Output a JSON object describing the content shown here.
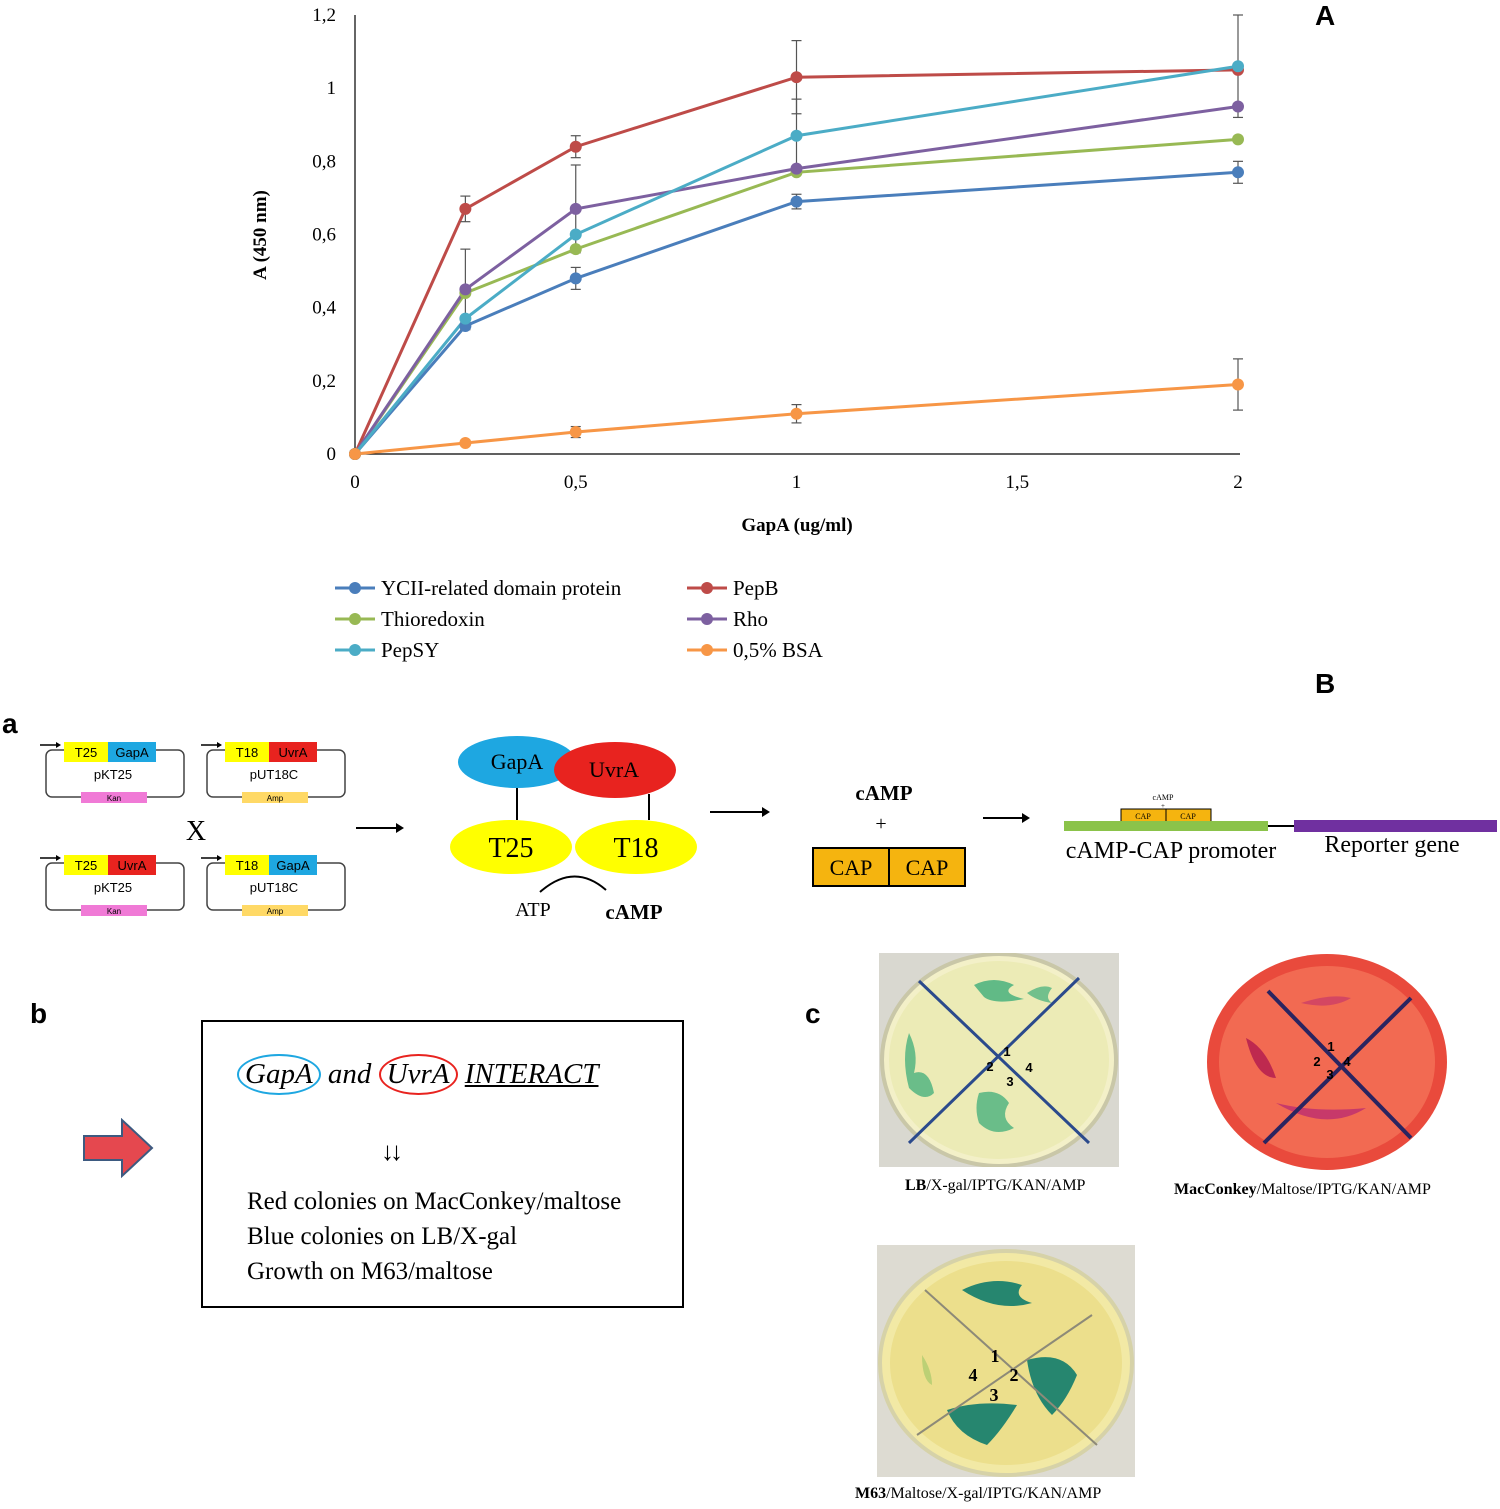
{
  "panel_labels": {
    "A": "A",
    "B": "B",
    "a": "a",
    "b": "b",
    "c": "c"
  },
  "chart_data": {
    "type": "line",
    "xlabel": "GapA (ug/ml)",
    "ylabel": "A (450 nm)",
    "x": [
      0,
      0.25,
      0.5,
      1,
      2
    ],
    "x_ticks": [
      0,
      0.5,
      1,
      1.5,
      2
    ],
    "x_tick_labels": [
      "0",
      "0,5",
      "1",
      "1,5",
      "2"
    ],
    "y_ticks": [
      0,
      0.2,
      0.4,
      0.6,
      0.8,
      1.0,
      1.2
    ],
    "y_tick_labels": [
      "0",
      "0,2",
      "0,4",
      "0,6",
      "0,8",
      "1",
      "1,2"
    ],
    "xlim": [
      0,
      2
    ],
    "ylim": [
      0,
      1.2
    ],
    "legend_position": "bottom",
    "series": [
      {
        "name": "YCII-related domain protein",
        "color": "#4a7ebb",
        "values": [
          0,
          0.35,
          0.48,
          0.69,
          0.77
        ],
        "errors": [
          0,
          0.01,
          0.03,
          0.02,
          0.03
        ]
      },
      {
        "name": "PepB",
        "color": "#be4b48",
        "values": [
          0,
          0.67,
          0.84,
          1.03,
          1.05
        ],
        "errors": [
          0,
          0.035,
          0.03,
          0.1,
          0.0
        ]
      },
      {
        "name": "Thioredoxin",
        "color": "#98b954",
        "values": [
          0,
          0.44,
          0.56,
          0.77,
          0.86
        ],
        "errors": [
          0,
          0.0,
          0.0,
          0.0,
          0.0
        ]
      },
      {
        "name": "Rho",
        "color": "#7d60a0",
        "values": [
          0,
          0.45,
          0.67,
          0.78,
          0.95
        ],
        "errors": [
          0,
          0.11,
          0.12,
          0.0,
          0.0
        ]
      },
      {
        "name": "PepSY",
        "color": "#4bacc6",
        "values": [
          0,
          0.37,
          0.6,
          0.87,
          1.06
        ],
        "errors": [
          0,
          0.0,
          0.0,
          0.1,
          0.14
        ]
      },
      {
        "name": "0,5% BSA",
        "color": "#f79646",
        "values": [
          0,
          0.03,
          0.06,
          0.11,
          0.19
        ],
        "errors": [
          0,
          0.0,
          0.015,
          0.025,
          0.07
        ]
      }
    ]
  },
  "diagram": {
    "plasmids": [
      {
        "tag": "T25",
        "gene": "GapA",
        "gene_color": "#1ea7e1",
        "name": "pKT25",
        "marker": "Kan",
        "marker_color": "#f07ad6"
      },
      {
        "tag": "T18",
        "gene": "UvrA",
        "gene_color": "#e8231f",
        "name": "pUT18C",
        "marker": "Amp",
        "marker_color": "#ffd966"
      },
      {
        "tag": "T25",
        "gene": "UvrA",
        "gene_color": "#e8231f",
        "name": "pKT25",
        "marker": "Kan",
        "marker_color": "#f07ad6"
      },
      {
        "tag": "T18",
        "gene": "GapA",
        "gene_color": "#1ea7e1",
        "name": "pUT18C",
        "marker": "Amp",
        "marker_color": "#ffd966"
      }
    ],
    "cross_symbol": "X",
    "complex": {
      "gapa": "GapA",
      "uvra": "UvrA",
      "t25": "T25",
      "t18": "T18",
      "atp": "ATP",
      "camp": "cAMP"
    },
    "camp_label": "cAMP",
    "plus": "+",
    "cap_box": [
      "CAP",
      "CAP"
    ],
    "promoter": {
      "small_camp": "cAMP",
      "small_plus": "+",
      "small_cap": [
        "CAP",
        "CAP"
      ],
      "label": "cAMP-CAP promoter",
      "reporter": "Reporter gene"
    }
  },
  "box": {
    "word1": "GapA",
    "and": "and",
    "word2": "UvrA",
    "interact": "INTERACT",
    "arrows": "↓↓",
    "lines": [
      "Red colonies on MacConkey/maltose",
      "Blue colonies on LB/X-gal",
      "Growth on M63/maltose"
    ]
  },
  "plates": [
    {
      "medium": "LB",
      "rest": "/X-gal/IPTG/KAN/AMP",
      "numbers": [
        "1",
        "2",
        "3",
        "4"
      ]
    },
    {
      "medium": "MacConkey",
      "rest": "/Maltose/IPTG/KAN/AMP",
      "numbers": [
        "1",
        "2",
        "3",
        "4"
      ]
    },
    {
      "medium": "M63",
      "rest": "/Maltose/X-gal/IPTG/KAN/AMP",
      "numbers": [
        "1",
        "2",
        "3",
        "4"
      ]
    }
  ]
}
